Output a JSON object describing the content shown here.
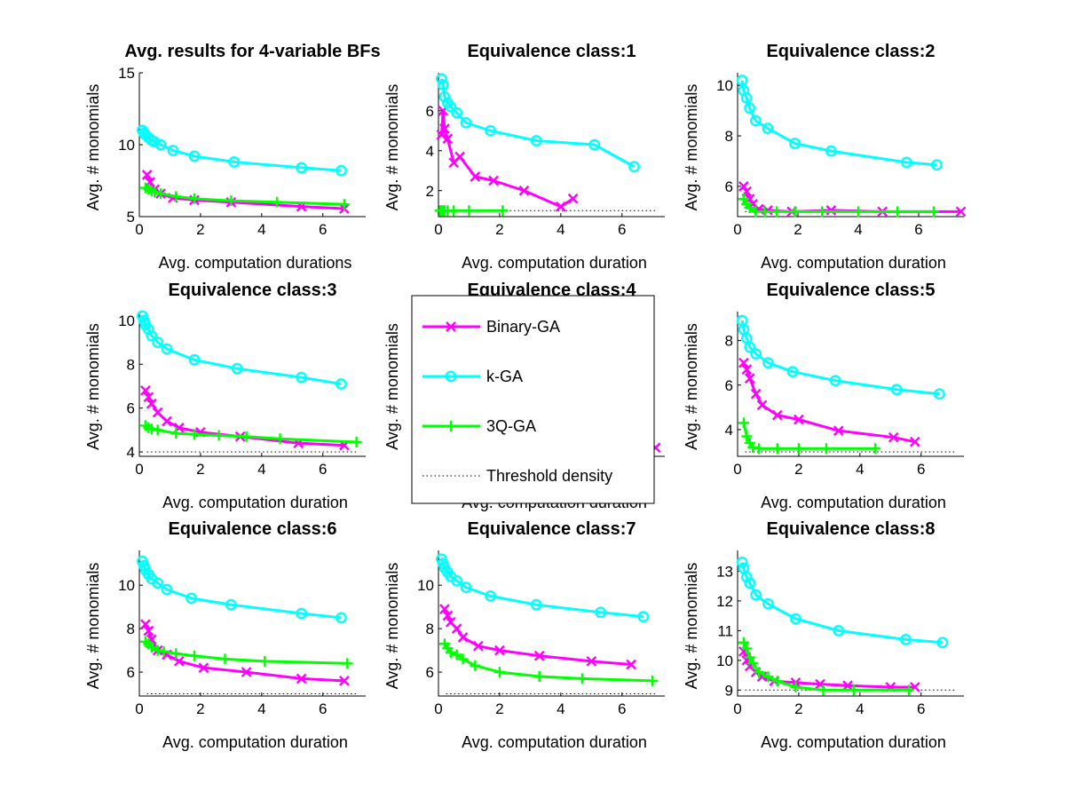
{
  "legend": {
    "entries": [
      {
        "label": "Binary-GA",
        "color": "#ff00ff",
        "marker": "x"
      },
      {
        "label": "k-GA",
        "color": "#00ffff",
        "marker": "o"
      },
      {
        "label": "3Q-GA",
        "color": "#00ff00",
        "marker": "+"
      },
      {
        "label": "Threshold density",
        "color": "#000000",
        "marker": "dotted-line"
      }
    ]
  },
  "chart_data": [
    {
      "type": "line",
      "title": "Avg. results for 4-variable BFs",
      "xlabel": "Avg. computation durations",
      "ylabel": "Avg. # monomials",
      "xlim": [
        0,
        7.4
      ],
      "ylim": [
        5,
        15
      ],
      "xticks": [
        0,
        2,
        4,
        6
      ],
      "yticks": [
        5,
        10,
        15
      ],
      "threshold": null,
      "series": [
        {
          "name": "Binary-GA",
          "x": [
            0.25,
            0.35,
            0.5,
            0.7,
            1.1,
            1.8,
            3.0,
            5.3,
            6.7
          ],
          "y": [
            7.9,
            7.4,
            6.9,
            6.6,
            6.3,
            6.15,
            6.0,
            5.7,
            5.55
          ]
        },
        {
          "name": "k-GA",
          "x": [
            0.1,
            0.15,
            0.2,
            0.3,
            0.4,
            0.5,
            0.7,
            1.1,
            1.8,
            3.1,
            5.3,
            6.6
          ],
          "y": [
            11.0,
            10.8,
            10.7,
            10.5,
            10.3,
            10.2,
            10.0,
            9.6,
            9.2,
            8.8,
            8.4,
            8.2
          ]
        },
        {
          "name": "3Q-GA",
          "x": [
            0.2,
            0.3,
            0.4,
            0.5,
            0.7,
            1.2,
            1.8,
            3.0,
            4.5,
            6.7
          ],
          "y": [
            7.0,
            6.9,
            6.8,
            6.7,
            6.6,
            6.4,
            6.25,
            6.1,
            6.0,
            5.85
          ]
        }
      ]
    },
    {
      "type": "line",
      "title": "Equivalence class:1",
      "xlabel": "Avg. computation duration",
      "ylabel": "Avg. # monomials",
      "xlim": [
        0,
        7.4
      ],
      "ylim": [
        0.7,
        7.9
      ],
      "xticks": [
        0,
        2,
        4,
        6
      ],
      "yticks": [
        2,
        4,
        6
      ],
      "threshold": 1,
      "series": [
        {
          "name": "Binary-GA",
          "x": [
            0.1,
            0.15,
            0.2,
            0.3,
            0.5,
            0.7,
            1.2,
            1.8,
            2.8,
            4.0,
            4.4
          ],
          "y": [
            4.8,
            6.0,
            5.1,
            4.6,
            3.4,
            3.7,
            2.7,
            2.5,
            2.0,
            1.2,
            1.6
          ]
        },
        {
          "name": "k-GA",
          "x": [
            0.1,
            0.15,
            0.2,
            0.3,
            0.4,
            0.6,
            0.9,
            1.7,
            3.2,
            5.1,
            6.4
          ],
          "y": [
            7.6,
            7.3,
            6.7,
            6.4,
            6.2,
            5.9,
            5.4,
            5.0,
            4.5,
            4.3,
            3.2
          ]
        },
        {
          "name": "3Q-GA",
          "x": [
            0.05,
            0.1,
            0.15,
            0.2,
            0.3,
            0.5,
            1.0,
            2.1
          ],
          "y": [
            1.0,
            1.0,
            1.0,
            1.0,
            1.0,
            1.0,
            1.0,
            1.0
          ]
        }
      ]
    },
    {
      "type": "line",
      "title": "Equivalence class:2",
      "xlabel": "Avg. computation duration",
      "ylabel": "Avg. # monomials",
      "xlim": [
        0,
        7.5
      ],
      "ylim": [
        4.8,
        10.5
      ],
      "xticks": [
        0,
        2,
        4,
        6
      ],
      "yticks": [
        6,
        8,
        10
      ],
      "threshold": 5,
      "series": [
        {
          "name": "Binary-GA",
          "x": [
            0.2,
            0.3,
            0.4,
            0.5,
            0.7,
            1.0,
            1.8,
            3.1,
            4.8,
            7.4
          ],
          "y": [
            6.0,
            5.8,
            5.5,
            5.3,
            5.1,
            5.05,
            5.0,
            5.05,
            5.0,
            5.0
          ]
        },
        {
          "name": "k-GA",
          "x": [
            0.15,
            0.2,
            0.3,
            0.4,
            0.6,
            1.0,
            1.9,
            3.1,
            5.6,
            6.6
          ],
          "y": [
            10.2,
            9.8,
            9.5,
            9.1,
            8.6,
            8.3,
            7.7,
            7.4,
            6.95,
            6.85
          ]
        },
        {
          "name": "3Q-GA",
          "x": [
            0.2,
            0.3,
            0.4,
            0.6,
            0.9,
            1.3,
            1.9,
            2.8,
            4.0,
            5.3,
            6.5
          ],
          "y": [
            5.5,
            5.3,
            5.15,
            5.0,
            5.0,
            5.0,
            5.0,
            5.0,
            5.0,
            5.0,
            5.0
          ]
        }
      ]
    },
    {
      "type": "line",
      "title": "Equivalence class:3",
      "xlabel": "Avg. computation duration",
      "ylabel": "Avg. # monomials",
      "xlim": [
        0,
        7.4
      ],
      "ylim": [
        3.8,
        10.4
      ],
      "xticks": [
        0,
        2,
        4,
        6
      ],
      "yticks": [
        4,
        6,
        8,
        10
      ],
      "threshold": 4,
      "series": [
        {
          "name": "Binary-GA",
          "x": [
            0.2,
            0.3,
            0.4,
            0.6,
            0.9,
            1.3,
            2.0,
            3.3,
            5.2,
            6.7
          ],
          "y": [
            6.8,
            6.5,
            6.2,
            5.8,
            5.4,
            5.1,
            4.9,
            4.7,
            4.4,
            4.3
          ]
        },
        {
          "name": "k-GA",
          "x": [
            0.1,
            0.15,
            0.2,
            0.3,
            0.4,
            0.6,
            0.9,
            1.8,
            3.2,
            5.3,
            6.6
          ],
          "y": [
            10.2,
            10.0,
            9.8,
            9.6,
            9.3,
            9.0,
            8.7,
            8.2,
            7.8,
            7.4,
            7.1
          ]
        },
        {
          "name": "3Q-GA",
          "x": [
            0.2,
            0.3,
            0.4,
            0.6,
            1.2,
            1.8,
            2.6,
            3.5,
            4.6,
            7.1
          ],
          "y": [
            5.2,
            5.1,
            5.05,
            5.0,
            4.85,
            4.8,
            4.75,
            4.7,
            4.6,
            4.45
          ]
        }
      ]
    },
    {
      "type": "line",
      "title": "Equivalence class:4",
      "xlabel": "Avg. computation duration",
      "ylabel": "Avg. # monomials",
      "xlim": [
        0,
        7.4
      ],
      "ylim": [
        0,
        10
      ],
      "xticks": [],
      "yticks": [],
      "threshold": null,
      "series": [
        {
          "name": "Binary-GA",
          "x": [
            7.1
          ],
          "y": [
            0.6
          ]
        }
      ]
    },
    {
      "type": "line",
      "title": "Equivalence class:5",
      "xlabel": "Avg. computation duration",
      "ylabel": "Avg. # monomials",
      "xlim": [
        0,
        7.4
      ],
      "ylim": [
        2.8,
        9.3
      ],
      "xticks": [
        0,
        2,
        4,
        6
      ],
      "yticks": [
        4,
        6,
        8
      ],
      "threshold": 3,
      "series": [
        {
          "name": "Binary-GA",
          "x": [
            0.2,
            0.3,
            0.4,
            0.6,
            0.8,
            1.3,
            2.0,
            3.3,
            5.1,
            5.8
          ],
          "y": [
            7.0,
            6.7,
            6.3,
            5.6,
            5.1,
            4.65,
            4.45,
            3.95,
            3.65,
            3.45
          ]
        },
        {
          "name": "k-GA",
          "x": [
            0.15,
            0.2,
            0.3,
            0.4,
            0.6,
            1.0,
            1.8,
            3.2,
            5.2,
            6.6
          ],
          "y": [
            8.9,
            8.5,
            8.1,
            7.7,
            7.4,
            7.0,
            6.6,
            6.2,
            5.8,
            5.6
          ]
        },
        {
          "name": "3Q-GA",
          "x": [
            0.2,
            0.3,
            0.4,
            0.5,
            0.7,
            1.3,
            2.0,
            2.9,
            4.5
          ],
          "y": [
            4.3,
            3.7,
            3.4,
            3.2,
            3.15,
            3.15,
            3.15,
            3.15,
            3.15
          ]
        }
      ]
    },
    {
      "type": "line",
      "title": "Equivalence class:6",
      "xlabel": "Avg. computation duration",
      "ylabel": "Avg. # monomials",
      "xlim": [
        0,
        7.4
      ],
      "ylim": [
        4.9,
        11.6
      ],
      "xticks": [
        0,
        2,
        4,
        6
      ],
      "yticks": [
        6,
        8,
        10
      ],
      "threshold": 5,
      "series": [
        {
          "name": "Binary-GA",
          "x": [
            0.2,
            0.3,
            0.4,
            0.6,
            0.9,
            1.3,
            2.1,
            3.5,
            5.3,
            6.7
          ],
          "y": [
            8.2,
            7.9,
            7.5,
            7.0,
            6.8,
            6.5,
            6.2,
            6.0,
            5.7,
            5.6
          ]
        },
        {
          "name": "k-GA",
          "x": [
            0.1,
            0.15,
            0.2,
            0.3,
            0.4,
            0.6,
            0.9,
            1.7,
            3.0,
            5.3,
            6.6
          ],
          "y": [
            11.1,
            10.9,
            10.7,
            10.5,
            10.3,
            10.1,
            9.8,
            9.4,
            9.1,
            8.7,
            8.5
          ]
        },
        {
          "name": "3Q-GA",
          "x": [
            0.2,
            0.3,
            0.4,
            0.6,
            0.8,
            1.2,
            1.8,
            2.8,
            4.1,
            6.8
          ],
          "y": [
            7.4,
            7.3,
            7.15,
            7.0,
            6.95,
            6.85,
            6.75,
            6.6,
            6.5,
            6.4
          ]
        }
      ]
    },
    {
      "type": "line",
      "title": "Equivalence class:7",
      "xlabel": "Avg. computation duration",
      "ylabel": "Avg. # monomials",
      "xlim": [
        0,
        7.4
      ],
      "ylim": [
        4.9,
        11.6
      ],
      "xticks": [
        0,
        2,
        4,
        6
      ],
      "yticks": [
        6,
        8,
        10
      ],
      "threshold": 5,
      "series": [
        {
          "name": "Binary-GA",
          "x": [
            0.2,
            0.3,
            0.4,
            0.6,
            0.8,
            1.3,
            2.0,
            3.3,
            5.0,
            6.3
          ],
          "y": [
            8.9,
            8.6,
            8.3,
            8.0,
            7.6,
            7.2,
            7.0,
            6.75,
            6.5,
            6.35
          ]
        },
        {
          "name": "k-GA",
          "x": [
            0.1,
            0.15,
            0.2,
            0.3,
            0.4,
            0.6,
            0.9,
            1.7,
            3.2,
            5.3,
            6.7
          ],
          "y": [
            11.2,
            11.0,
            10.8,
            10.6,
            10.4,
            10.2,
            9.9,
            9.5,
            9.1,
            8.75,
            8.55
          ]
        },
        {
          "name": "3Q-GA",
          "x": [
            0.2,
            0.3,
            0.4,
            0.6,
            0.8,
            1.2,
            2.0,
            3.3,
            4.7,
            7.0
          ],
          "y": [
            7.3,
            7.1,
            6.9,
            6.8,
            6.6,
            6.3,
            6.0,
            5.8,
            5.7,
            5.6
          ]
        }
      ]
    },
    {
      "type": "line",
      "title": "Equivalence class:8",
      "xlabel": "Avg. computation duration",
      "ylabel": "Avg. # monomials",
      "xlim": [
        0,
        7.4
      ],
      "ylim": [
        8.8,
        13.7
      ],
      "xticks": [
        0,
        2,
        4,
        6
      ],
      "yticks": [
        9,
        10,
        11,
        12,
        13
      ],
      "threshold": 9,
      "series": [
        {
          "name": "Binary-GA",
          "x": [
            0.2,
            0.3,
            0.4,
            0.6,
            0.8,
            1.2,
            1.9,
            2.7,
            3.6,
            5.0,
            5.8
          ],
          "y": [
            10.3,
            10.0,
            9.8,
            9.6,
            9.45,
            9.3,
            9.25,
            9.2,
            9.15,
            9.1,
            9.1
          ]
        },
        {
          "name": "k-GA",
          "x": [
            0.15,
            0.2,
            0.3,
            0.4,
            0.6,
            1.0,
            1.9,
            3.3,
            5.5,
            6.7
          ],
          "y": [
            13.3,
            13.1,
            12.8,
            12.6,
            12.2,
            11.9,
            11.4,
            11.0,
            10.7,
            10.6
          ]
        },
        {
          "name": "3Q-GA",
          "x": [
            0.2,
            0.3,
            0.4,
            0.5,
            0.7,
            1.0,
            1.3,
            1.9,
            2.8,
            3.8,
            5.6
          ],
          "y": [
            10.6,
            10.4,
            10.1,
            9.9,
            9.6,
            9.45,
            9.3,
            9.1,
            9.0,
            9.0,
            9.0
          ]
        }
      ]
    }
  ]
}
